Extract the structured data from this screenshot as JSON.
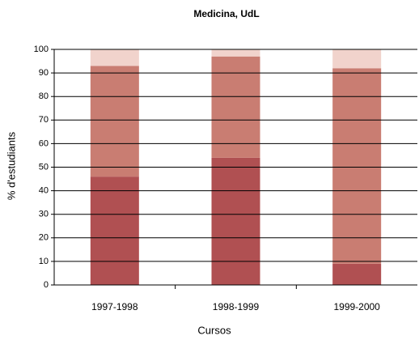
{
  "chart_data": {
    "type": "stacked-bar",
    "title": "Medicina, UdL",
    "x_label": "Cursos",
    "y_label": "% d'estudiants",
    "categories": [
      "1997-1998",
      "1998-1999",
      "1999-2000"
    ],
    "series": [
      {
        "color": "#b05052",
        "values": [
          46,
          54,
          9
        ]
      },
      {
        "color": "#c97d72",
        "values": [
          47,
          43,
          83
        ]
      },
      {
        "color": "#f1d3cc",
        "values": [
          7,
          3,
          8
        ]
      }
    ],
    "ylim": [
      0,
      100
    ],
    "yticks": [
      0,
      10,
      20,
      30,
      40,
      50,
      60,
      70,
      80,
      90,
      100
    ],
    "grid": true
  }
}
